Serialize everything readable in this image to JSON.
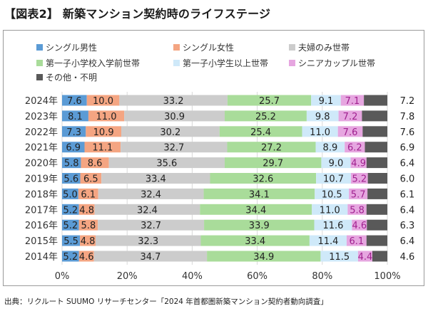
{
  "title": "【図表2】 新築マンション契約時のライフステージ",
  "source": "出典：リクルート SUUMO リサーチセンター「2024 年首都圏新築マンション契約者動向調査」",
  "chart_data": {
    "type": "bar",
    "orientation": "horizontal",
    "stacked": true,
    "percent_stacked": true,
    "categories": [
      "2024年",
      "2023年",
      "2022年",
      "2021年",
      "2020年",
      "2019年",
      "2018年",
      "2017年",
      "2016年",
      "2015年",
      "2014年"
    ],
    "series": [
      {
        "name": "シングル男性",
        "color": "#5b9bd5",
        "values": [
          7.6,
          8.1,
          7.3,
          6.9,
          5.8,
          5.6,
          5.0,
          5.2,
          5.2,
          5.5,
          5.2
        ]
      },
      {
        "name": "シングル女性",
        "color": "#f4a582",
        "values": [
          10.0,
          11.0,
          10.9,
          11.1,
          8.6,
          6.5,
          6.1,
          4.8,
          5.8,
          4.8,
          4.6
        ]
      },
      {
        "name": "夫婦のみ世帯",
        "color": "#cccccc",
        "values": [
          33.2,
          30.9,
          30.2,
          32.7,
          35.6,
          33.4,
          32.4,
          32.4,
          32.7,
          32.3,
          34.7
        ]
      },
      {
        "name": "第一子小学校入学前世帯",
        "color": "#a9dc9a",
        "values": [
          25.7,
          25.2,
          25.4,
          27.2,
          29.7,
          32.6,
          34.1,
          34.4,
          33.9,
          33.4,
          34.9
        ]
      },
      {
        "name": "第一子小学生以上世帯",
        "color": "#cfe9f9",
        "values": [
          9.1,
          9.8,
          11.0,
          8.9,
          9.0,
          10.7,
          10.5,
          11.0,
          11.6,
          11.4,
          11.5
        ]
      },
      {
        "name": "シニアカップル世帯",
        "color": "#e6a6e0",
        "values": [
          7.1,
          7.2,
          7.6,
          6.2,
          4.9,
          5.2,
          5.7,
          5.8,
          4.6,
          6.1,
          4.4
        ]
      },
      {
        "name": "その他・不明",
        "color": "#595959",
        "values": [
          7.2,
          7.8,
          7.6,
          6.9,
          6.4,
          6.0,
          6.1,
          6.4,
          6.3,
          6.4,
          4.6
        ]
      }
    ],
    "display_labels": [
      [
        "7.6",
        "10.0",
        "33.2",
        "25.7",
        "9.1",
        "7.1",
        "7.2"
      ],
      [
        "8.1",
        "11.0",
        "30.9",
        "25.2",
        "9.8",
        "7.2",
        "7.8"
      ],
      [
        "7.3",
        "10.9",
        "30.2",
        "25.4",
        "11.0",
        "7.6",
        "7.6"
      ],
      [
        "6.9",
        "11.1",
        "32.7",
        "27.2",
        "8.9",
        "6.2",
        "6.9"
      ],
      [
        "5.8",
        "8.6",
        "35.6",
        "29.7",
        "9.0",
        "4.9",
        "6.4"
      ],
      [
        "5.6",
        "6.5",
        "33.4",
        "32.6",
        "10.7",
        "5.2",
        "6.0"
      ],
      [
        "5.0",
        "6.1",
        "32.4",
        "34.1",
        "10.5",
        "5.7",
        "6.1"
      ],
      [
        "5.2",
        "4.8",
        "32.4",
        "34.4",
        "11.0",
        "5.8",
        "6.4"
      ],
      [
        "5.2",
        "5.8",
        "32.7",
        "33.9",
        "11.6",
        "4.6",
        "6.3"
      ],
      [
        "5.5",
        "4.8",
        "32.3",
        "33.4",
        "11.4",
        "6.1",
        "6.4"
      ],
      [
        "5.2",
        "4.6",
        "34.7",
        "34.9",
        "11.5",
        "4.4",
        "4.6"
      ]
    ],
    "x_ticks": [
      "0%",
      "20%",
      "40%",
      "60%",
      "80%",
      "100%"
    ],
    "xlim": [
      0,
      100
    ],
    "grid": true,
    "legend_position": "top",
    "data_label_colors": {
      "default": "#222222",
      "pink": "#a0218f"
    }
  }
}
